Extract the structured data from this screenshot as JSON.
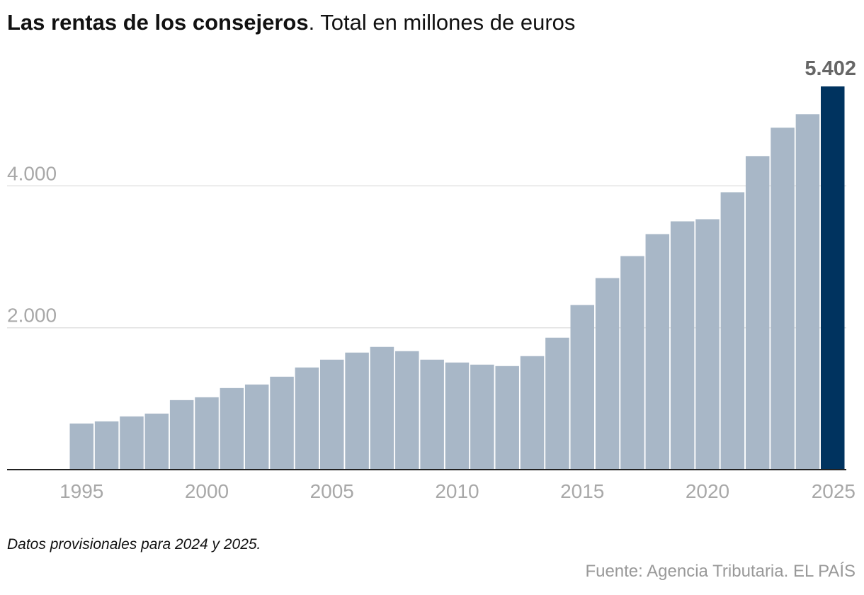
{
  "title": {
    "bold": "Las rentas de los consejeros",
    "rest": ". Total en millones de euros"
  },
  "note": "Datos provisionales para 2024 y 2025.",
  "source": "Fuente: Agencia Tributaria. EL PAÍS",
  "chart_data": {
    "type": "bar",
    "categories": [
      1995,
      1996,
      1997,
      1998,
      1999,
      2000,
      2001,
      2002,
      2003,
      2004,
      2005,
      2006,
      2007,
      2008,
      2009,
      2010,
      2011,
      2012,
      2013,
      2014,
      2015,
      2016,
      2017,
      2018,
      2019,
      2020,
      2021,
      2022,
      2023,
      2024,
      2025
    ],
    "values": [
      650,
      680,
      750,
      790,
      980,
      1020,
      1150,
      1200,
      1310,
      1440,
      1550,
      1650,
      1730,
      1670,
      1550,
      1510,
      1480,
      1460,
      1600,
      1860,
      2320,
      2700,
      3010,
      3320,
      3500,
      3530,
      3910,
      4420,
      4820,
      5010,
      5402
    ],
    "highlight": {
      "category": 2025,
      "label": "5.402"
    },
    "ylim": [
      0,
      5402
    ],
    "yticks": [
      {
        "value": 2000,
        "label": "2.000"
      },
      {
        "value": 4000,
        "label": "4.000"
      }
    ],
    "xticks": [
      {
        "value": 1995,
        "label": "1995"
      },
      {
        "value": 2000,
        "label": "2000"
      },
      {
        "value": 2005,
        "label": "2005"
      },
      {
        "value": 2010,
        "label": "2010"
      },
      {
        "value": 2015,
        "label": "2015"
      },
      {
        "value": 2020,
        "label": "2020"
      },
      {
        "value": 2025,
        "label": "2025"
      }
    ],
    "xlabel": "",
    "ylabel": "",
    "grid": true,
    "colors": {
      "bar": "#a8b7c7",
      "highlight": "#00335f",
      "grid": "#e2e2e2",
      "axis": "#222222",
      "tick_label": "#a8a8a8",
      "highlight_label": "#666666"
    }
  }
}
